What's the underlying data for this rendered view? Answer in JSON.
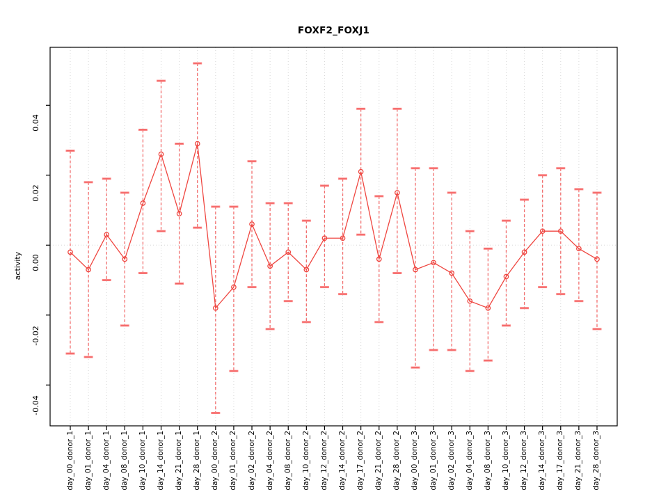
{
  "chart_data": {
    "type": "line",
    "title": "FOXF2_FOXJ1",
    "xlabel": "",
    "ylabel": "activity",
    "grid": "vertical dotted gridline at each category; dotted horizontal line at y=0",
    "legend": "none",
    "marker": "open-circle",
    "error_bars": true,
    "ylim": [
      -0.052,
      0.057
    ],
    "yticks": [
      0.04,
      0.02,
      0.0,
      -0.02,
      -0.04
    ],
    "ytick_labels": [
      "0.04",
      "0.02",
      "0.00",
      "-0.02",
      "-0.04"
    ],
    "categories": [
      "day_00_donor_1",
      "day_01_donor_1",
      "day_04_donor_1",
      "day_08_donor_1",
      "day_10_donor_1",
      "day_14_donor_1",
      "day_21_donor_1",
      "day_28_donor_1",
      "day_00_donor_2",
      "day_01_donor_2",
      "day_02_donor_2",
      "day_04_donor_2",
      "day_08_donor_2",
      "day_10_donor_2",
      "day_12_donor_2",
      "day_14_donor_2",
      "day_17_donor_2",
      "day_21_donor_2",
      "day_28_donor_2",
      "day_00_donor_3",
      "day_01_donor_3",
      "day_02_donor_3",
      "day_04_donor_3",
      "day_08_donor_3",
      "day_10_donor_3",
      "day_12_donor_3",
      "day_14_donor_3",
      "day_17_donor_3",
      "day_21_donor_3",
      "day_28_donor_3"
    ],
    "series": [
      {
        "name": "activity",
        "values": [
          -0.002,
          -0.007,
          0.003,
          -0.004,
          0.012,
          0.026,
          0.009,
          0.029,
          -0.018,
          -0.012,
          0.006,
          -0.006,
          -0.002,
          -0.007,
          0.002,
          0.002,
          0.021,
          -0.004,
          0.015,
          -0.007,
          -0.005,
          -0.008,
          -0.016,
          -0.018,
          -0.009,
          -0.002,
          0.004,
          0.004,
          -0.001,
          -0.004
        ],
        "lower": [
          -0.031,
          -0.032,
          -0.01,
          -0.023,
          -0.008,
          0.004,
          -0.011,
          0.005,
          -0.048,
          -0.036,
          -0.012,
          -0.024,
          -0.016,
          -0.022,
          -0.012,
          -0.014,
          0.003,
          -0.022,
          -0.008,
          -0.035,
          -0.03,
          -0.03,
          -0.036,
          -0.033,
          -0.023,
          -0.018,
          -0.012,
          -0.014,
          -0.016,
          -0.024
        ],
        "upper": [
          0.027,
          0.018,
          0.019,
          0.015,
          0.033,
          0.047,
          0.029,
          0.052,
          0.011,
          0.011,
          0.024,
          0.012,
          0.012,
          0.007,
          0.017,
          0.019,
          0.039,
          0.014,
          0.039,
          0.022,
          0.022,
          0.015,
          0.004,
          -0.001,
          0.007,
          0.013,
          0.02,
          0.022,
          0.016,
          0.015
        ]
      }
    ],
    "colors": {
      "series": "#ef4640",
      "error_bar": "#f26060",
      "error_cap": "#fb8585",
      "gridline": "#d6d6d6",
      "axis": "#000000",
      "background": "#ffffff"
    }
  }
}
